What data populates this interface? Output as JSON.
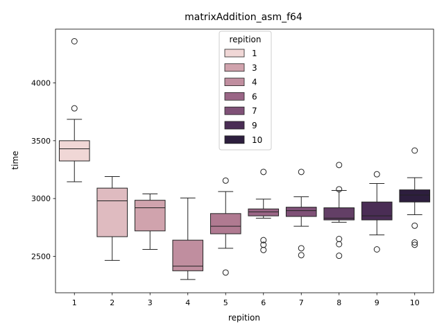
{
  "chart_data": {
    "type": "box",
    "title": "matrixAddition_asm_f64",
    "xlabel": "repition",
    "ylabel": "time",
    "ylim": [
      2185,
      4465
    ],
    "y_ticks": [
      2500,
      3000,
      3500,
      4000
    ],
    "categories": [
      "1",
      "2",
      "3",
      "4",
      "5",
      "6",
      "7",
      "8",
      "9",
      "10"
    ],
    "legend": {
      "title": "repition",
      "placement": "top-center",
      "entries": [
        "1",
        "3",
        "4",
        "6",
        "7",
        "9",
        "10"
      ]
    },
    "boxes": [
      {
        "x": "1",
        "whisker_low": 3145,
        "q1": 3325,
        "median": 3430,
        "q3": 3500,
        "whisker_high": 3685,
        "outliers": [
          3780,
          4360
        ],
        "color": "#f0d7d6"
      },
      {
        "x": "2",
        "whisker_low": 2465,
        "q1": 2670,
        "median": 2980,
        "q3": 3090,
        "whisker_high": 3190,
        "outliers": [],
        "color": "#dfbbc0"
      },
      {
        "x": "3",
        "whisker_low": 2560,
        "q1": 2720,
        "median": 2920,
        "q3": 2985,
        "whisker_high": 3040,
        "outliers": [],
        "color": "#d0a3ad"
      },
      {
        "x": "4",
        "whisker_low": 2300,
        "q1": 2375,
        "median": 2415,
        "q3": 2640,
        "whisker_high": 3005,
        "outliers": [],
        "color": "#c08e9f"
      },
      {
        "x": "5",
        "whisker_low": 2570,
        "q1": 2695,
        "median": 2760,
        "q3": 2870,
        "whisker_high": 3060,
        "outliers": [
          2360,
          3155
        ],
        "color": "#b07a91"
      },
      {
        "x": "6",
        "whisker_low": 2830,
        "q1": 2850,
        "median": 2885,
        "q3": 2910,
        "whisker_high": 2995,
        "outliers": [
          2555,
          2600,
          2640,
          3230
        ],
        "color": "#9a6686"
      },
      {
        "x": "7",
        "whisker_low": 2760,
        "q1": 2845,
        "median": 2895,
        "q3": 2925,
        "whisker_high": 3015,
        "outliers": [
          2510,
          2570,
          3230
        ],
        "color": "#7f5177"
      },
      {
        "x": "8",
        "whisker_low": 2795,
        "q1": 2815,
        "median": 2830,
        "q3": 2920,
        "whisker_high": 3070,
        "outliers": [
          2505,
          2605,
          2650,
          3080,
          3290
        ],
        "color": "#633f66"
      },
      {
        "x": "9",
        "whisker_low": 2685,
        "q1": 2815,
        "median": 2850,
        "q3": 2970,
        "whisker_high": 3130,
        "outliers": [
          2560,
          3210
        ],
        "color": "#4a2d55"
      },
      {
        "x": "10",
        "whisker_low": 2860,
        "q1": 2970,
        "median": 3030,
        "q3": 3075,
        "whisker_high": 3180,
        "outliers": [
          2600,
          2620,
          2765,
          3415
        ],
        "color": "#2d1e3e"
      }
    ]
  }
}
